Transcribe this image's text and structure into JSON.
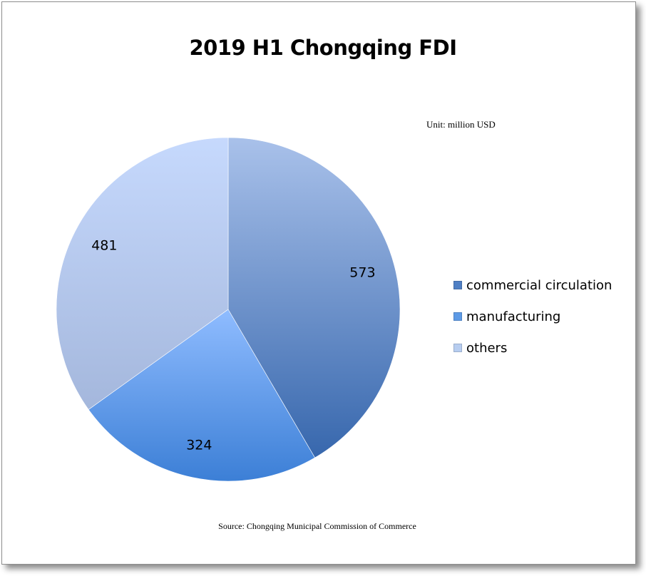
{
  "chart_data": {
    "type": "pie",
    "title": "2019 H1 Chongqing FDI",
    "unit_note": "Unit: million USD",
    "source": "Source: Chongqing Municipal Commission of  Commerce",
    "categories": [
      "commercial circulation",
      "manufacturing",
      "others"
    ],
    "values": [
      573,
      324,
      481
    ],
    "data_labels": [
      "573",
      "324",
      "481"
    ],
    "colors": [
      "#4f7fc4",
      "#5d9ae6",
      "#b7cdf0"
    ],
    "legend_placement": "right"
  }
}
